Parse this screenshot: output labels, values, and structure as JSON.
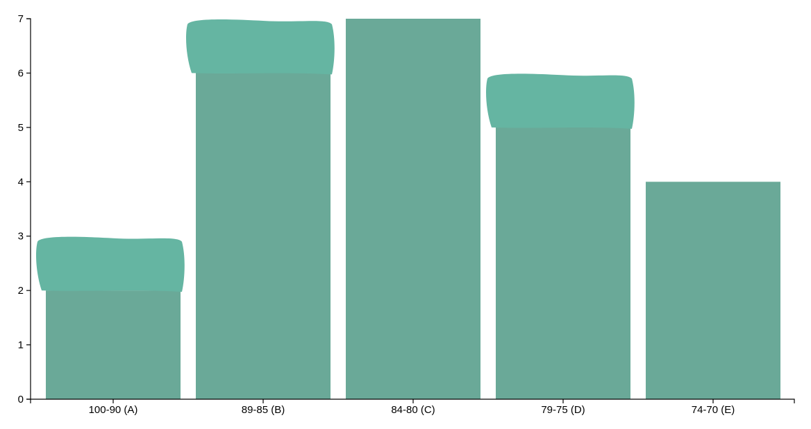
{
  "chart_data": {
    "type": "bar",
    "categories": [
      "100-90 (A)",
      "89-85 (B)",
      "84-80 (C)",
      "79-75 (D)",
      "74-70 (E)"
    ],
    "values": [
      2,
      6,
      7,
      5,
      4
    ],
    "overlay_values": [
      3,
      7,
      null,
      6,
      null
    ],
    "ylim": [
      0,
      7
    ],
    "yticks": [
      0,
      1,
      2,
      3,
      4,
      5,
      6,
      7
    ],
    "grid": false,
    "legend": "none",
    "colors": {
      "bar": "#6aa998",
      "overlay": "#65b5a2",
      "axis": "#000000"
    }
  }
}
